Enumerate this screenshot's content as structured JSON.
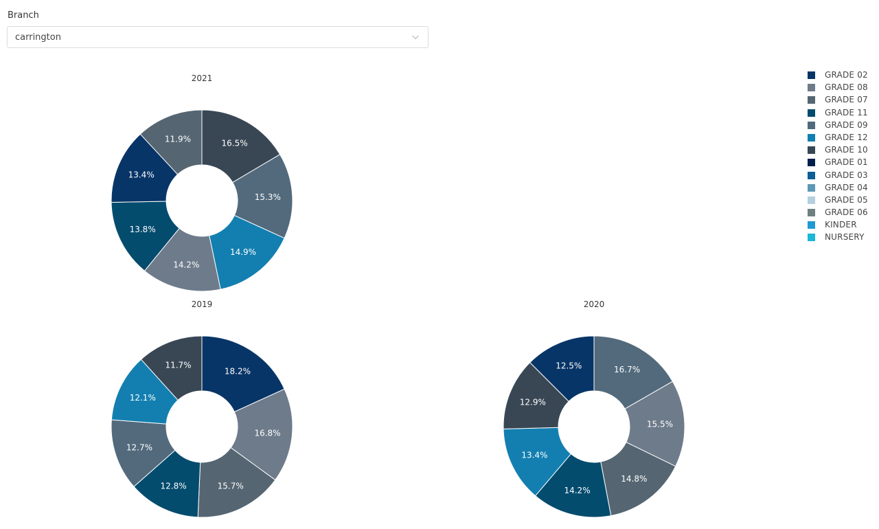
{
  "filter": {
    "label": "Branch",
    "value": "carrington",
    "chevron_icon": "chevron-down-icon"
  },
  "legend": {
    "items": [
      {
        "label": "GRADE 02",
        "color": "#083567"
      },
      {
        "label": "GRADE 08",
        "color": "#6e7b8b"
      },
      {
        "label": "GRADE 07",
        "color": "#556672"
      },
      {
        "label": "GRADE 11",
        "color": "#044c6e"
      },
      {
        "label": "GRADE 09",
        "color": "#526a7c"
      },
      {
        "label": "GRADE 12",
        "color": "#137fb0"
      },
      {
        "label": "GRADE 10",
        "color": "#394755"
      },
      {
        "label": "GRADE 01",
        "color": "#001f4c"
      },
      {
        "label": "GRADE 03",
        "color": "#0b5f96"
      },
      {
        "label": "GRADE 04",
        "color": "#5d98b6"
      },
      {
        "label": "GRADE 05",
        "color": "#b4cfe0"
      },
      {
        "label": "GRADE 06",
        "color": "#6e8080"
      },
      {
        "label": "KINDER",
        "color": "#2199d3"
      },
      {
        "label": "NURSERY",
        "color": "#1cb7d6"
      }
    ]
  },
  "chart_data": [
    {
      "type": "pie",
      "title": "2021",
      "donut": true,
      "slices": [
        {
          "category": "GRADE 10",
          "value": 16.5,
          "label": "16.5%"
        },
        {
          "category": "GRADE 09",
          "value": 15.3,
          "label": "15.3%"
        },
        {
          "category": "GRADE 12",
          "value": 14.9,
          "label": "14.9%"
        },
        {
          "category": "GRADE 08",
          "value": 14.2,
          "label": "14.2%"
        },
        {
          "category": "GRADE 11",
          "value": 13.8,
          "label": "13.8%"
        },
        {
          "category": "GRADE 02",
          "value": 13.4,
          "label": "13.4%"
        },
        {
          "category": "GRADE 07",
          "value": 11.9,
          "label": "11.9%"
        }
      ]
    },
    {
      "type": "pie",
      "title": "2019",
      "donut": true,
      "slices": [
        {
          "category": "GRADE 02",
          "value": 18.2,
          "label": "18.2%"
        },
        {
          "category": "GRADE 08",
          "value": 16.8,
          "label": "16.8%"
        },
        {
          "category": "GRADE 07",
          "value": 15.7,
          "label": "15.7%"
        },
        {
          "category": "GRADE 11",
          "value": 12.8,
          "label": "12.8%"
        },
        {
          "category": "GRADE 09",
          "value": 12.7,
          "label": "12.7%"
        },
        {
          "category": "GRADE 12",
          "value": 12.1,
          "label": "12.1%"
        },
        {
          "category": "GRADE 10",
          "value": 11.7,
          "label": "11.7%"
        }
      ]
    },
    {
      "type": "pie",
      "title": "2020",
      "donut": true,
      "slices": [
        {
          "category": "GRADE 09",
          "value": 16.7,
          "label": "16.7%"
        },
        {
          "category": "GRADE 08",
          "value": 15.5,
          "label": "15.5%"
        },
        {
          "category": "GRADE 07",
          "value": 14.8,
          "label": "14.8%"
        },
        {
          "category": "GRADE 11",
          "value": 14.2,
          "label": "14.2%"
        },
        {
          "category": "GRADE 12",
          "value": 13.4,
          "label": "13.4%"
        },
        {
          "category": "GRADE 10",
          "value": 12.9,
          "label": "12.9%"
        },
        {
          "category": "GRADE 02",
          "value": 12.5,
          "label": "12.5%"
        }
      ]
    }
  ]
}
